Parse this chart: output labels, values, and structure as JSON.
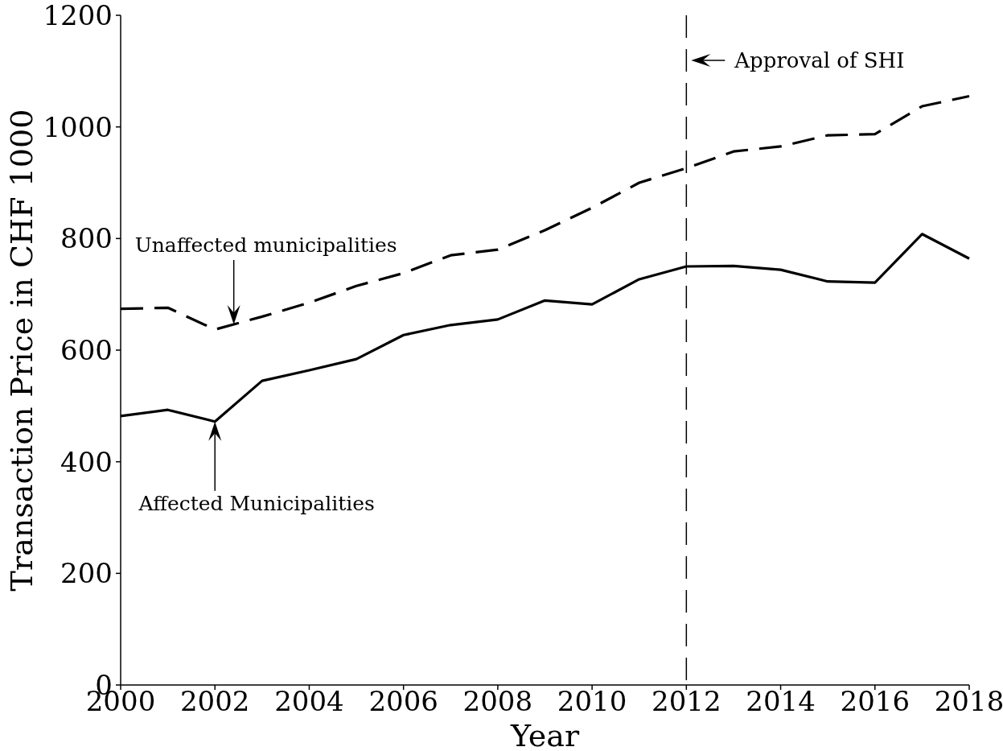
{
  "chart_data": {
    "type": "line",
    "xlabel": "Year",
    "ylabel": "Transaction Price in CHF 1000",
    "x": [
      2000,
      2001,
      2002,
      2003,
      2004,
      2005,
      2006,
      2007,
      2008,
      2009,
      2010,
      2011,
      2012,
      2013,
      2014,
      2015,
      2016,
      2017,
      2018
    ],
    "series": [
      {
        "color": "#000000",
        "line_style": "dashed",
        "values": [
          674,
          676,
          637,
          660,
          685,
          715,
          738,
          770,
          780,
          815,
          855,
          900,
          926,
          956,
          965,
          985,
          987,
          1037,
          1055
        ]
      },
      {
        "color": "#000000",
        "line_style": "solid",
        "values": [
          482,
          493,
          472,
          545,
          564,
          584,
          627,
          645,
          655,
          689,
          682,
          727,
          750,
          751,
          744,
          723,
          721,
          808,
          764
        ]
      }
    ],
    "xlim": [
      2000,
      2018
    ],
    "xticks": [
      2000,
      2002,
      2004,
      2006,
      2008,
      2010,
      2012,
      2014,
      2016,
      2018
    ],
    "ylim": [
      0,
      1200
    ],
    "yticks": [
      0,
      200,
      400,
      600,
      800,
      1000,
      1200
    ],
    "grid": false,
    "ref_lines": [
      {
        "axis": "x",
        "value": 2012,
        "label": "Approval of SHI",
        "color": "#000000",
        "line_style": "dashed"
      }
    ],
    "annotations": [
      "Unaffected municipalities",
      "Affected Municipalities"
    ]
  }
}
